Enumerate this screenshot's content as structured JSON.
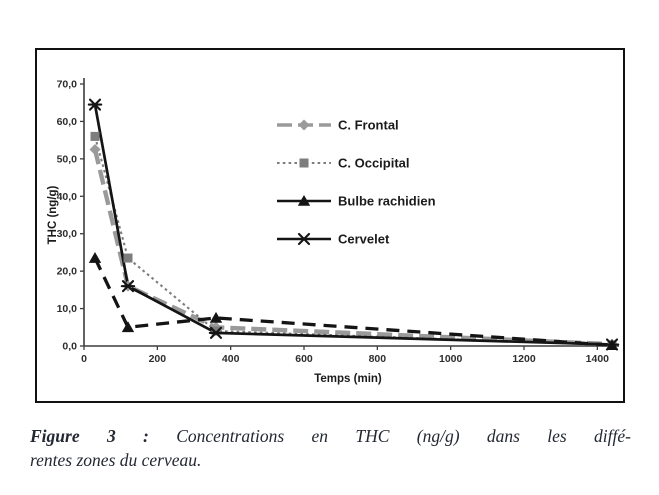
{
  "figure": {
    "border_color": "#111111",
    "background": "#ffffff"
  },
  "chart_data": {
    "type": "line",
    "title": "",
    "xlabel": "Temps (min)",
    "ylabel": "THC (ng/g)",
    "x": [
      30,
      120,
      360,
      1440
    ],
    "series": [
      {
        "name": "C. Frontal",
        "values": [
          52.5,
          16,
          5,
          0.5
        ],
        "color": "#9a9a9a",
        "line_style": "dashed",
        "legend_line_style": "dashed",
        "marker": "diamond"
      },
      {
        "name": "C. Occipital",
        "values": [
          56,
          23.5,
          4,
          0.3
        ],
        "color": "#7d7d7d",
        "line_style": "dotted",
        "legend_line_style": "dotted",
        "marker": "square"
      },
      {
        "name": "Bulbe rachidien",
        "values": [
          23.5,
          5,
          7.5,
          0.2
        ],
        "color": "#141414",
        "line_style": "long-dash",
        "legend_line_style": "solid",
        "marker": "triangle"
      },
      {
        "name": "Cervelet",
        "values": [
          64.5,
          16,
          3.5,
          0.4
        ],
        "color": "#141414",
        "line_style": "solid",
        "legend_line_style": "solid",
        "marker": "x-star"
      }
    ],
    "xlim": [
      0,
      1440
    ],
    "ylim": [
      0,
      70
    ],
    "x_ticks": [
      "0",
      "200",
      "400",
      "600",
      "800",
      "1000",
      "1200",
      "1400"
    ],
    "x_tick_values": [
      0,
      200,
      400,
      600,
      800,
      1000,
      1200,
      1400
    ],
    "y_ticks": [
      "0,0",
      "10,0",
      "20,0",
      "30,0",
      "40,0",
      "50,0",
      "60,0",
      "70,0"
    ],
    "y_tick_values": [
      0,
      10,
      20,
      30,
      40,
      50,
      60,
      70
    ],
    "grid": false,
    "legend_position": "upper-right-inside",
    "axis_color": "#3d3d3d",
    "tick_label_color": "#2e2e2e",
    "legend_text_color": "#1b1b1b"
  },
  "caption": {
    "label": "Figure 3 :",
    "line1": "Concentrations en THC (ng/g) dans les diffé-",
    "line2": "rentes zones du cerveau."
  }
}
